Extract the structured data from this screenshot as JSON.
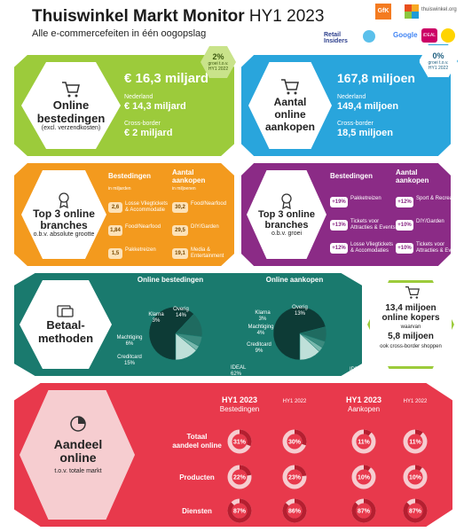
{
  "header": {
    "title_bold": "Thuiswinkel Markt Monitor",
    "title_period": "HY1 2023",
    "subtitle": "Alle e-commercefeiten in één oogopslag",
    "logos": [
      "GfK",
      "thuiswinkel.org",
      "Retail Insiders",
      "Google",
      "iDEAL"
    ]
  },
  "colors": {
    "green": "#9ccb3b",
    "blue": "#29a5dc",
    "orange": "#f39a1e",
    "purple": "#8b2b86",
    "teal": "#1a7a6e",
    "red": "#e8394c",
    "pink": "#f6cdd0"
  },
  "spend": {
    "title": "Online bestedingen",
    "note": "(excl. verzendkosten)",
    "total": "€ 16,3 miljard",
    "nl_label": "Nederland",
    "nl_value": "€ 14,3 miljard",
    "cb_label": "Cross-border",
    "cb_value": "€ 2 miljard",
    "growth_value": "2%",
    "growth_note": "groei t.o.v. HY1 2022"
  },
  "purchases": {
    "title": "Aantal online aankopen",
    "total": "167,8 miljoen",
    "nl_label": "Nederland",
    "nl_value": "149,4 miljoen",
    "cb_label": "Cross-border",
    "cb_value": "18,5 miljoen",
    "growth_value": "0%",
    "growth_note": "groei t.o.v. HY1 2022"
  },
  "top3_abs": {
    "title": "Top 3 online branches",
    "sub": "o.b.v. absolute grootte",
    "col1": "Bestedingen",
    "col1_unit": "in miljarden",
    "col2": "Aantal aankopen",
    "col2_unit": "in miljoenen",
    "spend_rows": [
      {
        "value": "2,6",
        "label": "Losse Vliegtickets & Accommodatie"
      },
      {
        "value": "1,84",
        "label": "Food/Nearfood"
      },
      {
        "value": "1,5",
        "label": "Pakketreizen"
      }
    ],
    "purchase_rows": [
      {
        "value": "30,2",
        "label": "Food/Nearfood"
      },
      {
        "value": "29,5",
        "label": "DIY/Garden"
      },
      {
        "value": "19,1",
        "label": "Media & Entertainment"
      }
    ]
  },
  "top3_growth": {
    "title": "Top 3 online branches",
    "sub": "o.b.v. groei",
    "col1": "Bestedingen",
    "col2": "Aantal aankopen",
    "spend_rows": [
      {
        "value": "+19%",
        "label": "Pakketreizen"
      },
      {
        "value": "+13%",
        "label": "Tickets voor Attracties & Events"
      },
      {
        "value": "+12%",
        "label": "Losse Vliegtickets & Accomodaties"
      }
    ],
    "purchase_rows": [
      {
        "value": "+12%",
        "label": "Sport & Recreatie"
      },
      {
        "value": "+10%",
        "label": "DIY/Garden"
      },
      {
        "value": "+10%",
        "label": "Tickets voor Attracties & Events"
      }
    ]
  },
  "payments": {
    "title": "Betaal-methoden"
  },
  "buyers": {
    "line1": "13,4 miljoen online kopers",
    "line2": "waarvan",
    "line3": "5,8 miljoen",
    "line4": "ook cross-border shoppen"
  },
  "share": {
    "title": "Aandeel online",
    "sub": "t.o.v. totale markt",
    "col_labels": [
      {
        "period": "HY1 2023",
        "metric": "Bestedingen"
      },
      {
        "period": "HY1 2022",
        "metric": ""
      },
      {
        "period": "HY1 2023",
        "metric": "Aankopen"
      },
      {
        "period": "HY1 2022",
        "metric": ""
      }
    ],
    "row_labels": [
      "Totaal aandeel online",
      "Producten",
      "Diensten"
    ]
  },
  "chart_data": [
    {
      "type": "pie",
      "title": "Online bestedingen",
      "categories": [
        "iDEAL",
        "Creditcard",
        "Machtiging",
        "Klarna",
        "Overig"
      ],
      "values": [
        62,
        15,
        6,
        3,
        14
      ],
      "labels": [
        "IDEAL 62%",
        "Creditcard 15%",
        "Machtiging 6%",
        "Klarna 3%",
        "Overig 14%"
      ]
    },
    {
      "type": "pie",
      "title": "Online aankopen",
      "categories": [
        "iDEAL",
        "Creditcard",
        "Machtiging",
        "Klarna",
        "Overig"
      ],
      "values": [
        71,
        9,
        4,
        3,
        13
      ],
      "labels": [
        "IDEAL 71%",
        "Creditcard 9%",
        "Machtiging 4%",
        "Klarna 3%",
        "Overig 13%"
      ]
    },
    {
      "type": "table",
      "title": "Aandeel online",
      "columns": [
        "HY1 2023 Bestedingen",
        "HY1 2022 Bestedingen",
        "HY1 2023 Aankopen",
        "HY1 2022 Aankopen"
      ],
      "rows": [
        "Totaal aandeel online",
        "Producten",
        "Diensten"
      ],
      "values": [
        [
          31,
          30,
          11,
          11
        ],
        [
          22,
          23,
          10,
          10
        ],
        [
          87,
          86,
          87,
          87
        ]
      ],
      "labels": [
        [
          "31%",
          "30%",
          "11%",
          "11%"
        ],
        [
          "22%",
          "23%",
          "10%",
          "10%"
        ],
        [
          "87%",
          "86%",
          "87%",
          "87%"
        ]
      ]
    }
  ]
}
